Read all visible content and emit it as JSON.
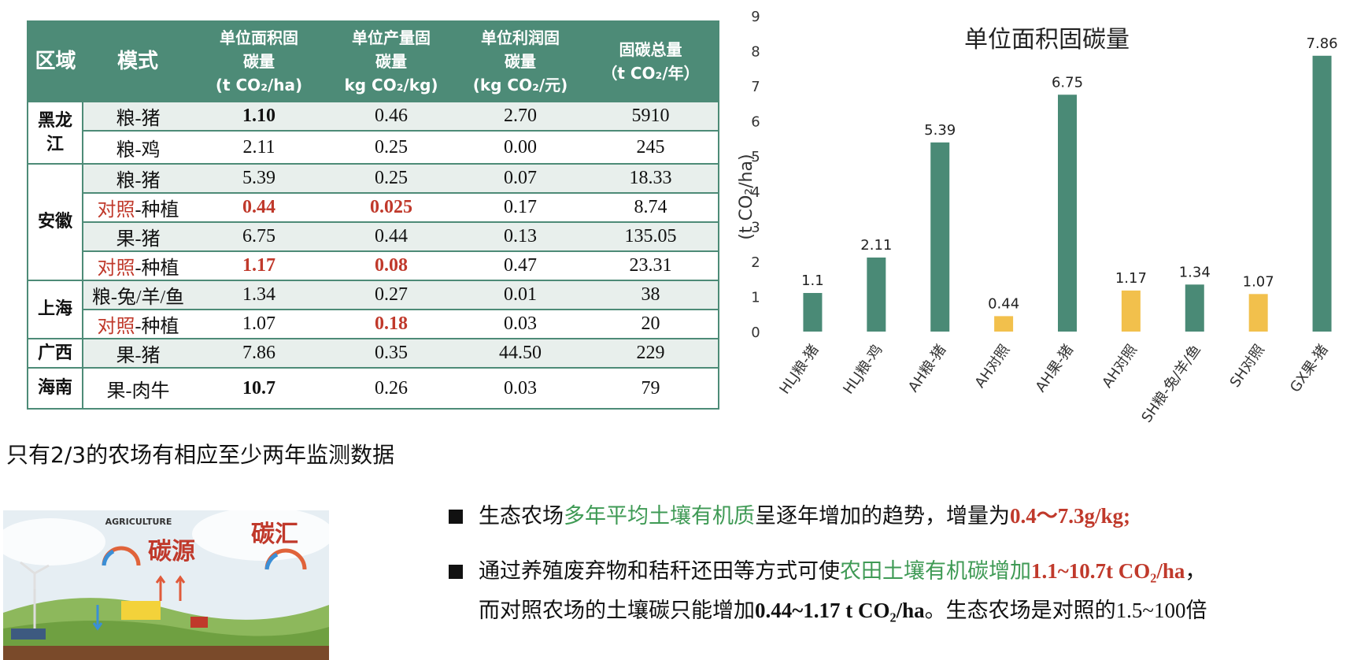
{
  "table": {
    "headers": {
      "region": "区域",
      "mode": "模式",
      "area_1": "单位面积固",
      "area_2": "碳量",
      "area_3": "(t CO₂/ha)",
      "yield_1": "单位产量固",
      "yield_2": "碳量",
      "yield_3": "kg CO₂/kg)",
      "profit_1": "单位利润固",
      "profit_2": "碳量",
      "profit_3": "(kg CO₂/元)",
      "total_1": "固碳总量",
      "total_2": "（t CO₂/年）"
    },
    "regions": {
      "heilongjiang_1": "黑龙",
      "heilongjiang_2": "江",
      "anhui": "安徽",
      "shanghai": "上海",
      "guangxi": "广西",
      "hainan": "海南"
    },
    "control_prefix": "对照",
    "control_suffix": "-种植",
    "rows": [
      {
        "mode": "粮-猪",
        "area": "1.10",
        "yield": "0.46",
        "profit": "2.70",
        "total": "5910"
      },
      {
        "mode": "粮-鸡",
        "area": "2.11",
        "yield": "0.25",
        "profit": "0.00",
        "total": "245"
      },
      {
        "mode": "粮-猪",
        "area": "5.39",
        "yield": "0.25",
        "profit": "0.07",
        "total": "18.33"
      },
      {
        "mode": "对照-种植",
        "area": "0.44",
        "yield": "0.025",
        "profit": "0.17",
        "total": "8.74"
      },
      {
        "mode": "果-猪",
        "area": "6.75",
        "yield": "0.44",
        "profit": "0.13",
        "total": "135.05"
      },
      {
        "mode": "对照-种植",
        "area": "1.17",
        "yield": "0.08",
        "profit": "0.47",
        "total": "23.31"
      },
      {
        "mode": "粮-兔/羊/鱼",
        "area": "1.34",
        "yield": "0.27",
        "profit": "0.01",
        "total": "38"
      },
      {
        "mode": "对照-种植",
        "area": "1.07",
        "yield": "0.18",
        "profit": "0.03",
        "total": "20"
      },
      {
        "mode": "果-猪",
        "area": "7.86",
        "yield": "0.35",
        "profit": "44.50",
        "total": "229"
      },
      {
        "mode": "果-肉牛",
        "area": "10.7",
        "yield": "0.26",
        "profit": "0.03",
        "total": "79"
      }
    ]
  },
  "chart_data": {
    "type": "bar",
    "title": "单位面积固碳量",
    "ylabel": "(t CO₂/ha)",
    "xlabel": "",
    "ylim": [
      0,
      9
    ],
    "yticks": [
      0,
      1,
      2,
      3,
      4,
      5,
      6,
      7,
      8,
      9
    ],
    "categories": [
      "HLJ粮-猪",
      "HLJ粮-鸡",
      "AH粮-猪",
      "AH对照",
      "AH果-猪",
      "AH对照",
      "SH粮-兔/羊/鱼",
      "SH对照",
      "GX果-猪"
    ],
    "values": [
      1.1,
      2.11,
      5.39,
      0.44,
      6.75,
      1.17,
      1.34,
      1.07,
      7.86
    ],
    "value_labels": [
      "1.1",
      "2.11",
      "5.39",
      "0.44",
      "6.75",
      "1.17",
      "1.34",
      "1.07",
      "7.86"
    ],
    "is_control": [
      false,
      false,
      false,
      true,
      false,
      true,
      false,
      true,
      false
    ],
    "grid": false,
    "legend": "none",
    "colors": {
      "eco": "#4a8a76",
      "control": "#f2c04c"
    }
  },
  "note": "只有2/3的农场有相应至少两年监测数据",
  "illustration": {
    "label_agriculture": "AGRICULTURE",
    "label_source": "碳源",
    "label_sink": "碳汇"
  },
  "bullets": {
    "b1_a": "生态农场",
    "b1_b": "多年平均土壤有机质",
    "b1_c": "呈逐年增加的趋势，增量为",
    "b1_d": "0.4～7.3g/kg;",
    "b2_a": "通过养殖废弃物和秸秆还田等方式可使",
    "b2_b": "农田土壤有机碳增加",
    "b2_c": "1.1~10.7t CO₂/ha",
    "b2_d": "，",
    "b2_e": "而对照农场的土壤碳只能增加",
    "b2_f": "0.44~1.17 t CO₂/ha",
    "b2_g": "。生态农场是对照的1.5~100倍"
  }
}
